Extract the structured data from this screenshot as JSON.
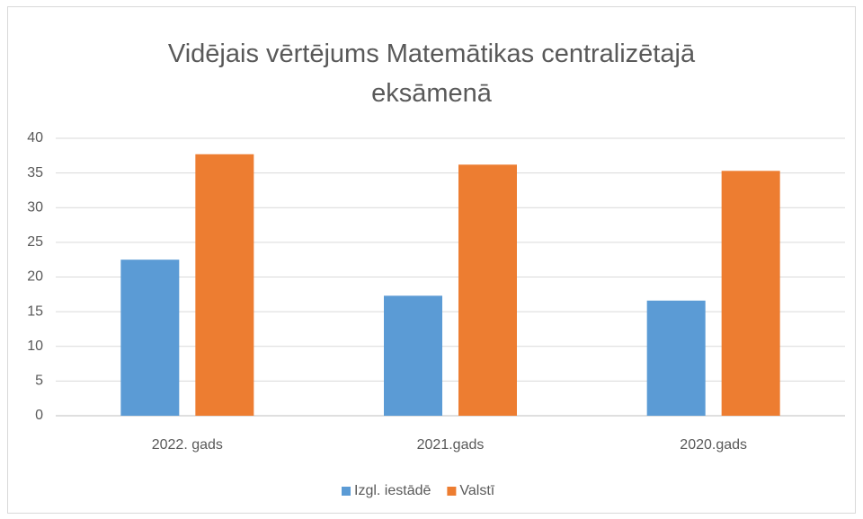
{
  "chart_data": {
    "type": "bar",
    "title": "Vidējais vērtējums Matemātikas centralizētajā eksāmenā",
    "categories": [
      "2022. gads",
      "2021.gads",
      "2020.gads"
    ],
    "series": [
      {
        "name": "Izgl. iestādē",
        "color": "#5b9bd5",
        "values": [
          22.5,
          17.3,
          16.6
        ]
      },
      {
        "name": "Valstī",
        "color": "#ed7d31",
        "values": [
          37.7,
          36.2,
          35.3
        ]
      }
    ],
    "ylim": [
      0,
      40
    ],
    "yticks": [
      0,
      5,
      10,
      15,
      20,
      25,
      30,
      35,
      40
    ],
    "grid": true,
    "legend": "bottom"
  }
}
